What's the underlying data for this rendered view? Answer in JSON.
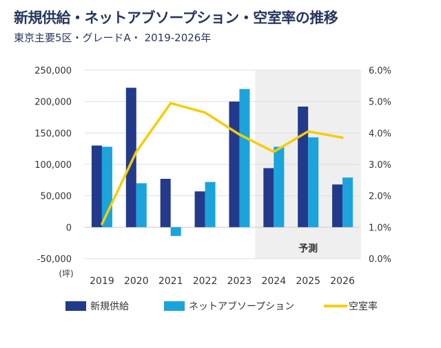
{
  "title": "新規供給・ネットアブソープション・空室率の推移",
  "subtitle": "東京主要5区・グレードA・ 2019-2026年",
  "chart_data": {
    "type": "bar",
    "categories": [
      "2019",
      "2020",
      "2021",
      "2022",
      "2023",
      "2024",
      "2025",
      "2026"
    ],
    "series": [
      {
        "name": "新規供給",
        "type": "bar",
        "axis": "left",
        "color": "#233a8c",
        "values": [
          130000,
          222000,
          77000,
          57000,
          200000,
          94000,
          192000,
          68000
        ]
      },
      {
        "name": "ネットアブソープション",
        "type": "bar",
        "axis": "left",
        "color": "#1ba3dc",
        "values": [
          128000,
          70000,
          -14000,
          72000,
          220000,
          128000,
          143000,
          79000
        ]
      },
      {
        "name": "空室率",
        "type": "line",
        "axis": "right",
        "color": "#f6cd00",
        "values": [
          1.1,
          3.4,
          4.95,
          4.65,
          3.95,
          3.4,
          4.05,
          3.85
        ]
      }
    ],
    "y_left": {
      "min": -50000,
      "max": 250000,
      "ticks": [
        "-50,000",
        "0",
        "50,000",
        "100,000",
        "150,000",
        "200,000",
        "250,000"
      ]
    },
    "y_right": {
      "min": 0,
      "max": 6,
      "ticks": [
        "0.0%",
        "1.0%",
        "2.0%",
        "3.0%",
        "4.0%",
        "5.0%",
        "6.0%"
      ]
    },
    "unit_label": "(坪)",
    "forecast": {
      "label": "予測",
      "from": "2024",
      "to": "2026",
      "color": "#efefef"
    },
    "grid": true,
    "legend": "bottom"
  }
}
